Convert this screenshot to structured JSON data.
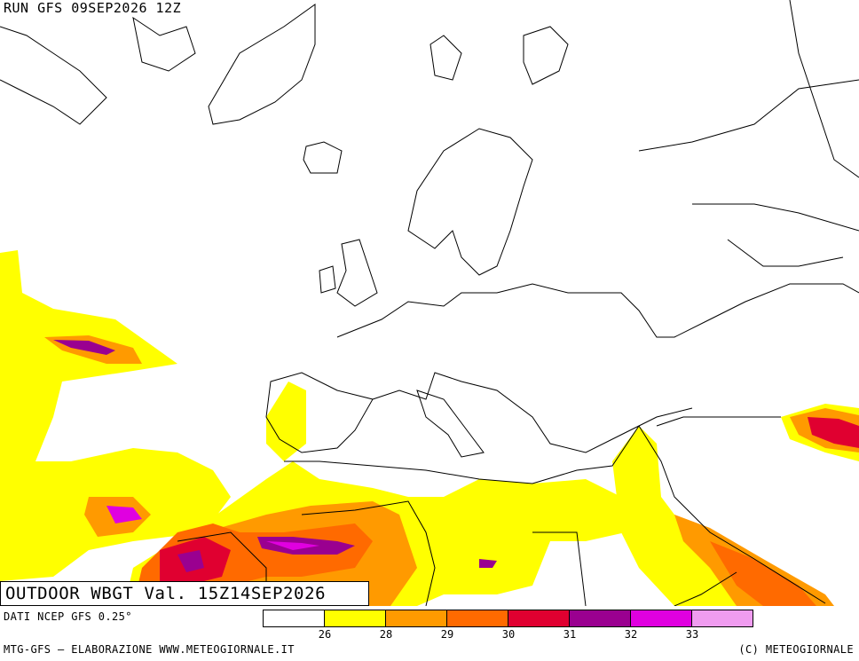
{
  "header": {
    "run_title": "RUN GFS 09SEP2026 12Z"
  },
  "banner": {
    "text": "OUTDOOR WBGT Val. 15Z14SEP2026"
  },
  "footer": {
    "data_source": "DATI NCEP GFS 0.25°",
    "elaboration": "MTG-GFS – ELABORAZIONE WWW.METEOGIORNALE.IT",
    "copyright": "(C) METEOGIORNALE"
  },
  "legend": {
    "colors": [
      "#ffffff",
      "#ffff00",
      "#ff9a00",
      "#ff6a00",
      "#e00030",
      "#9a0090",
      "#e000e0",
      "#f09cf0"
    ],
    "ticks": [
      "26",
      "28",
      "29",
      "30",
      "31",
      "32",
      "33"
    ]
  },
  "map": {
    "land_color": "#ffffff",
    "border_color": "#000000"
  }
}
